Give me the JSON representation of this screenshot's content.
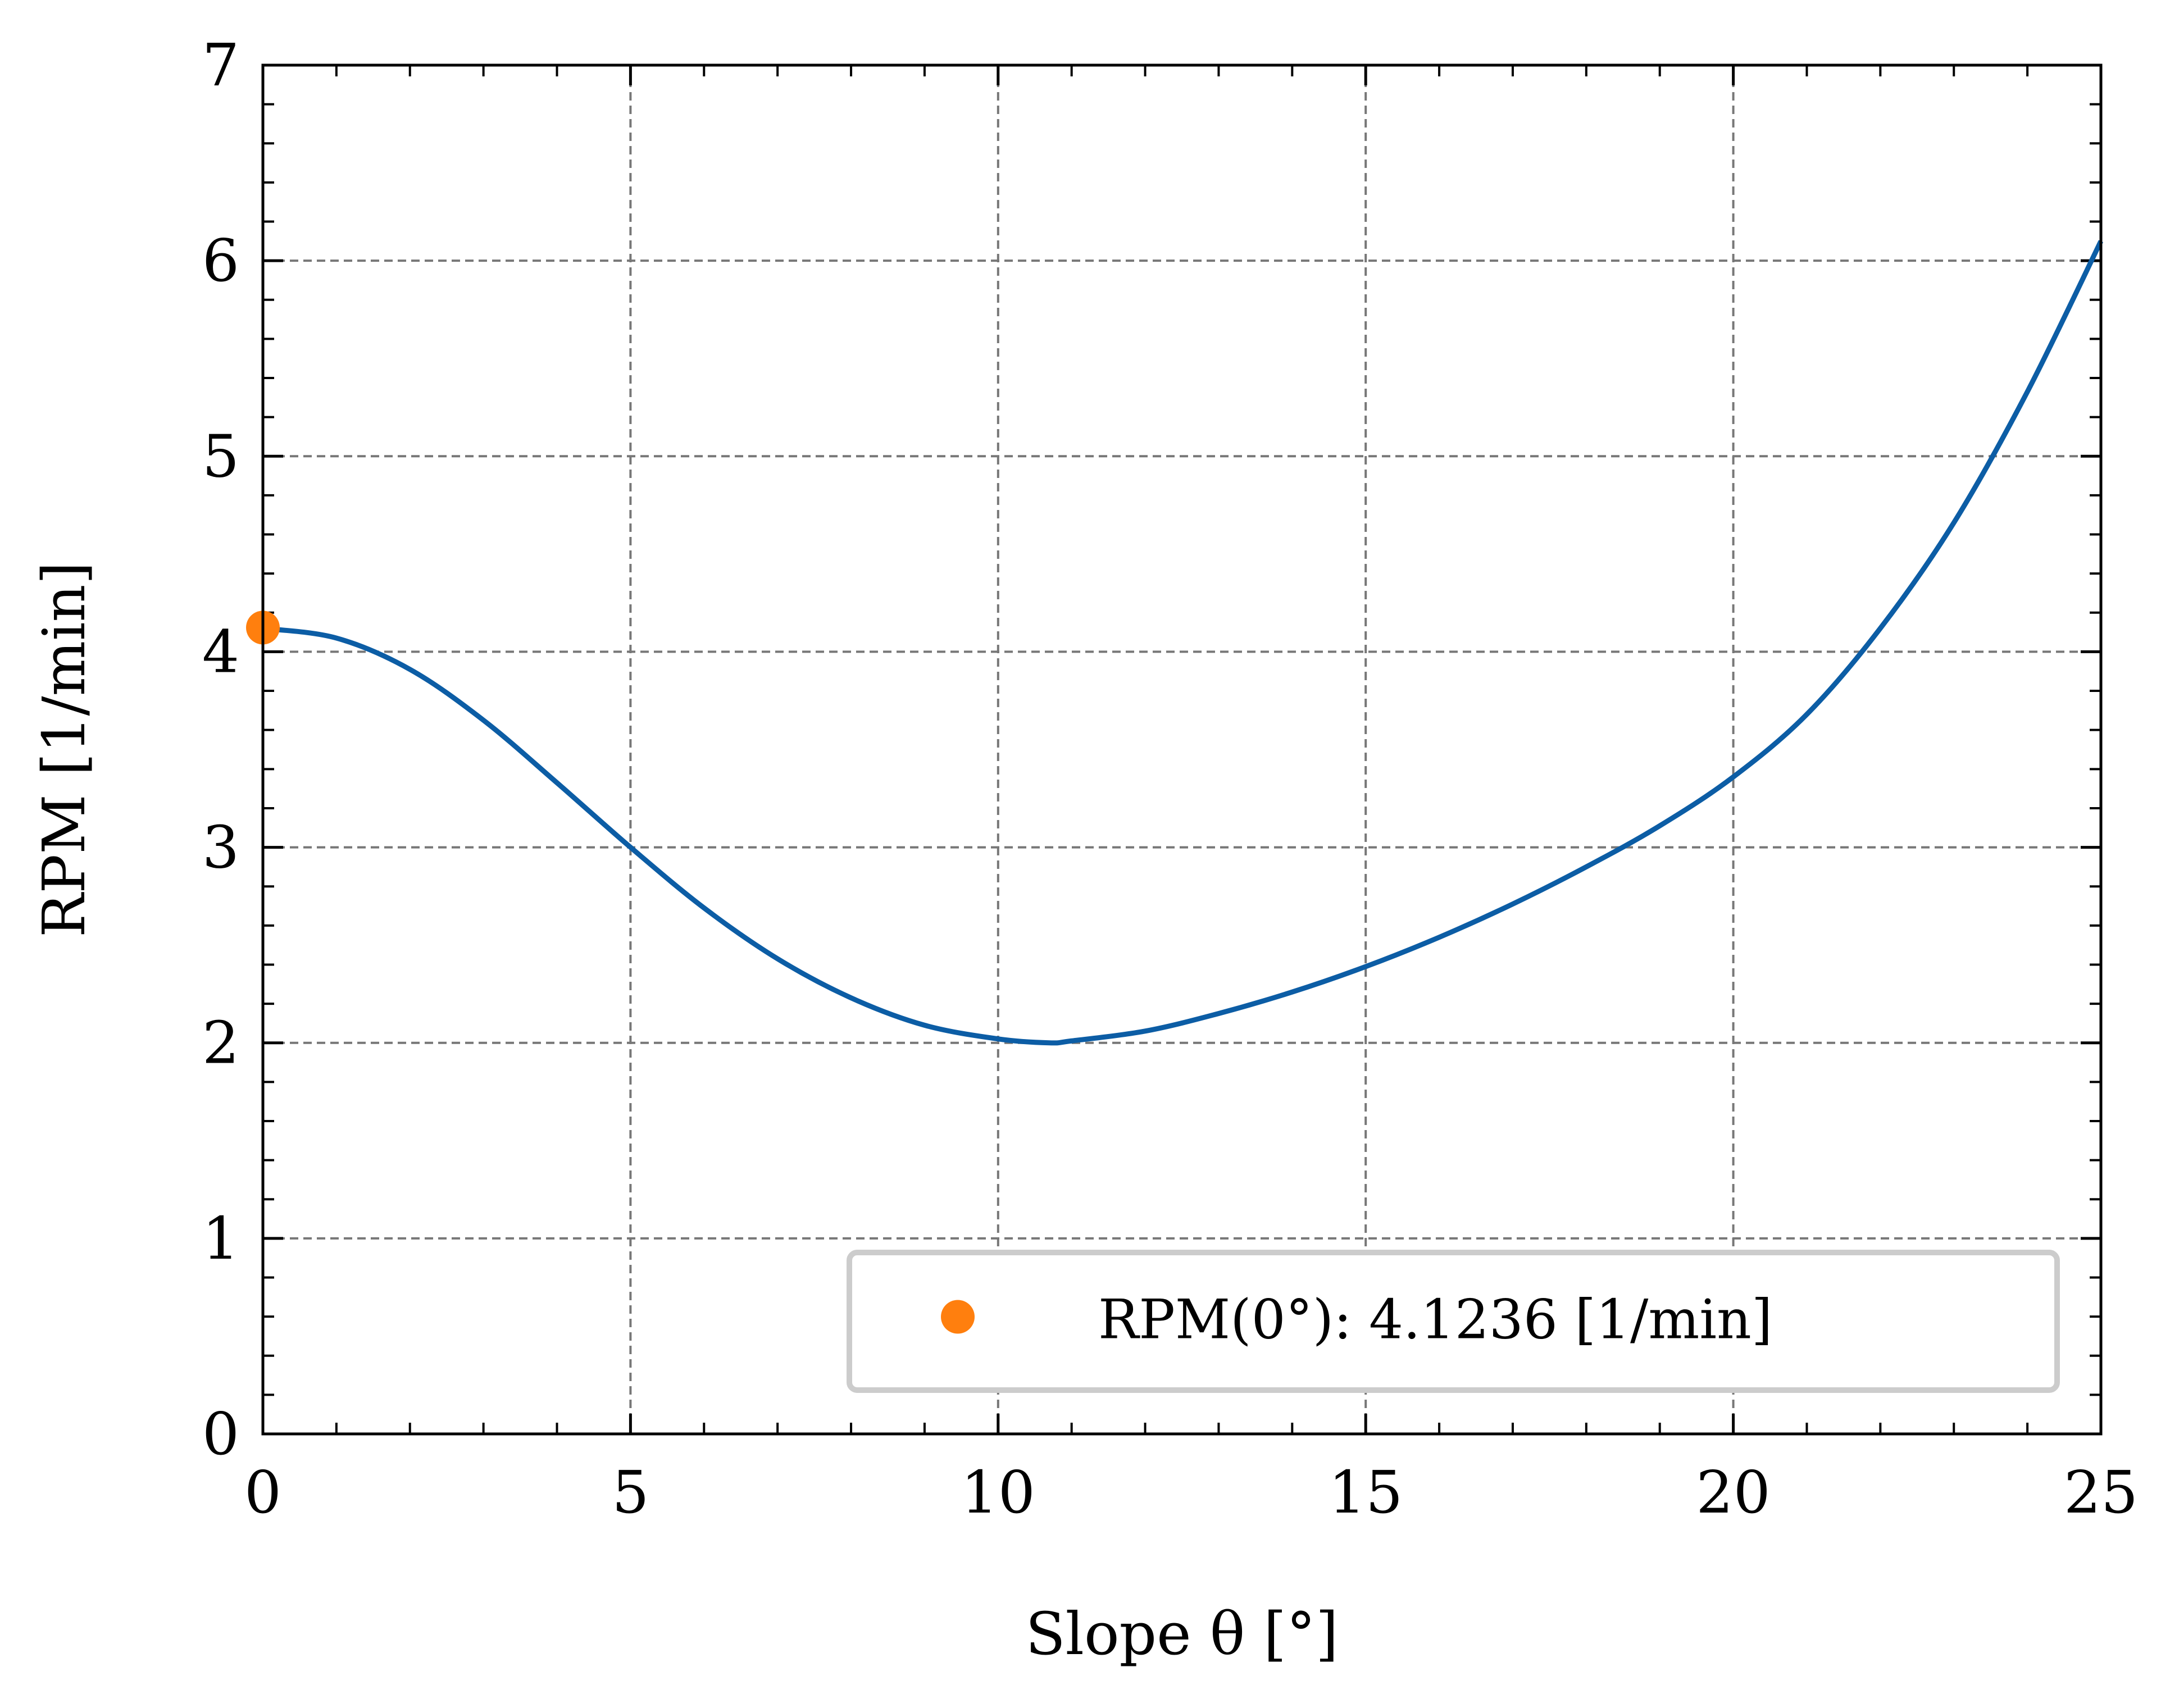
{
  "chart_data": {
    "type": "line",
    "xlabel": "Slope θ [°]",
    "ylabel": "RPM [1/min]",
    "xlim": [
      0,
      25
    ],
    "ylim": [
      0,
      7
    ],
    "xticks": [
      0,
      5,
      10,
      15,
      20,
      25
    ],
    "yticks": [
      0,
      1,
      2,
      3,
      4,
      5,
      6,
      7
    ],
    "x_minor_step": 1,
    "y_minor_step": 0.2,
    "grid": true,
    "legend_placement": "lower-right",
    "series": [
      {
        "color": "#0C5DA5",
        "style": "line",
        "x": [
          0,
          1,
          2,
          3,
          4,
          5,
          6,
          7,
          8,
          9,
          10,
          10.7,
          11,
          12,
          13,
          14,
          15,
          16,
          17,
          18,
          19,
          20,
          21,
          22,
          23,
          24,
          25
        ],
        "y": [
          4.12,
          4.07,
          3.91,
          3.65,
          3.33,
          3.0,
          2.69,
          2.43,
          2.23,
          2.09,
          2.02,
          2.0,
          2.01,
          2.06,
          2.15,
          2.26,
          2.39,
          2.54,
          2.71,
          2.9,
          3.11,
          3.36,
          3.68,
          4.12,
          4.66,
          5.33,
          6.1
        ]
      },
      {
        "name": "RPM(0°): 4.1236 [1/min]",
        "color": "#FF7F0E",
        "style": "marker",
        "x": [
          0
        ],
        "y": [
          4.1236
        ]
      }
    ]
  }
}
